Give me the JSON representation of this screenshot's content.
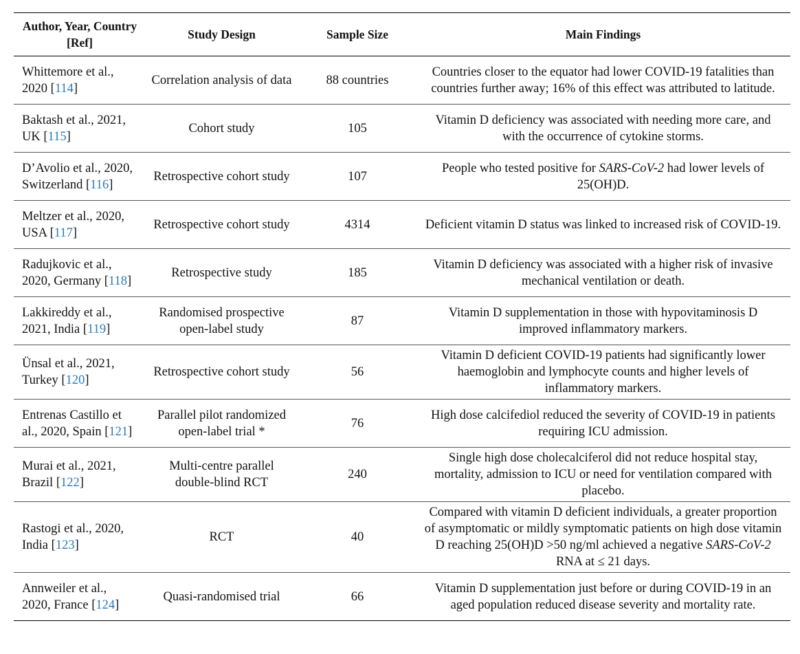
{
  "table": {
    "header": [
      "Author, Year, Country [Ref]",
      "Study Design",
      "Sample Size",
      "Main Findings"
    ],
    "rows": [
      [
        [
          "Whittemore et al., 2020 [",
          "114",
          "]"
        ],
        "Correlation analysis of data",
        "88 countries",
        [
          "Countries closer to the equator had lower COVID-19 fatalities than countries further away; 16% of this effect was attributed to latitude."
        ]
      ],
      [
        [
          "Baktash et al., 2021, UK [",
          "115",
          "]"
        ],
        "Cohort study",
        "105",
        [
          "Vitamin D deficiency was associated with needing more care, and with the occurrence of cytokine storms."
        ]
      ],
      [
        [
          "D’Avolio et al., 2020, Switzerland [",
          "116",
          "]"
        ],
        "Retrospective cohort study",
        "107",
        [
          "People who tested positive for ",
          "SARS-CoV-2",
          " had lower levels of 25(OH)D."
        ]
      ],
      [
        [
          "Meltzer et al., 2020, USA [",
          "117",
          "]"
        ],
        "Retrospective cohort study",
        "4314",
        [
          "Deficient vitamin D status was linked to increased risk of COVID-19."
        ]
      ],
      [
        [
          "Radujkovic et al., 2020, Germany [",
          "118",
          "]"
        ],
        "Retrospective study",
        "185",
        [
          "Vitamin D deficiency was associated with a higher risk of invasive mechanical ventilation or death."
        ]
      ],
      [
        [
          "Lakkireddy et al., 2021, India [",
          "119",
          "]"
        ],
        "Randomised prospective open-label study",
        "87",
        [
          "Vitamin D supplementation in those with hypovitaminosis D improved inflammatory markers."
        ]
      ],
      [
        [
          "Ünsal et al., 2021, Turkey [",
          "120",
          "]"
        ],
        "Retrospective cohort study",
        "56",
        [
          "Vitamin D deficient COVID-19 patients had significantly lower haemoglobin and lymphocyte counts and higher levels of inflammatory markers."
        ]
      ],
      [
        [
          "Entrenas Castillo et al., 2020, Spain [",
          "121",
          "]"
        ],
        "Parallel pilot randomized open-label trial *",
        "76",
        [
          "High dose calcifediol reduced the severity of COVID-19 in patients requiring ICU admission."
        ]
      ],
      [
        [
          "Murai et al., 2021, Brazil [",
          "122",
          "]"
        ],
        "Multi-centre parallel double-blind RCT",
        "240",
        [
          "Single high dose cholecalciferol did not reduce hospital stay, mortality, admission to ICU or need for ventilation compared with placebo."
        ]
      ],
      [
        [
          "Rastogi et al., 2020, India [",
          "123",
          "]"
        ],
        "RCT",
        "40",
        [
          "Compared with vitamin D deficient individuals, a greater proportion of asymptomatic or mildly symptomatic patients on high dose vitamin D reaching 25(OH)D >50 ng/ml achieved a negative ",
          "SARS-CoV-2",
          " RNA at ≤ 21 days."
        ]
      ],
      [
        [
          "Annweiler et al., 2020, France [",
          "124",
          "]"
        ],
        "Quasi-randomised trial",
        "66",
        [
          "Vitamin D supplementation just before or during COVID-19 in an aged population reduced disease severity and mortality rate."
        ]
      ]
    ]
  }
}
